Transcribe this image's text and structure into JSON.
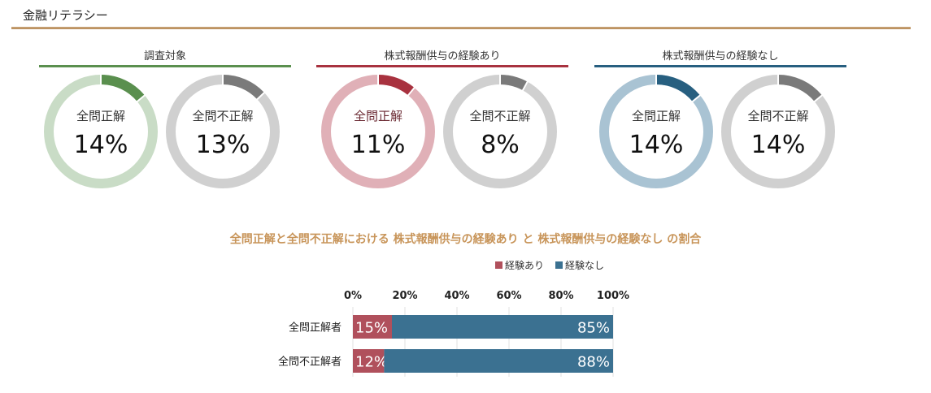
{
  "header": {
    "title": "金融リテラシー"
  },
  "colors": {
    "green": "#5a8f4e",
    "green_light": "#c9dcc6",
    "red": "#a8323f",
    "red_light": "#e0b0b7",
    "blue": "#275f80",
    "blue_light": "#a9c3d3",
    "gray_dark": "#7a7a7a",
    "gray_light": "#d0d0d0",
    "bar_exp": "#b0505c",
    "bar_noexp": "#3b7191",
    "title_accent": "#c8955a"
  },
  "groups": [
    {
      "title": "調査対象",
      "color_key": "green",
      "donuts": [
        {
          "label": "全問正解",
          "value": 14,
          "value_text": "14%",
          "tone": "accent"
        },
        {
          "label": "全問不正解",
          "value": 13,
          "value_text": "13%",
          "tone": "gray"
        }
      ]
    },
    {
      "title": "株式報酬供与の経験あり",
      "color_key": "red",
      "donuts": [
        {
          "label": "全問正解",
          "value": 11,
          "value_text": "11%",
          "tone": "accent"
        },
        {
          "label": "全問不正解",
          "value": 8,
          "value_text": "8%",
          "tone": "gray"
        }
      ]
    },
    {
      "title": "株式報酬供与の経験なし",
      "color_key": "blue",
      "donuts": [
        {
          "label": "全問正解",
          "value": 14,
          "value_text": "14%",
          "tone": "accent"
        },
        {
          "label": "全問不正解",
          "value": 14,
          "value_text": "14%",
          "tone": "gray"
        }
      ]
    }
  ],
  "chart_data": {
    "type": "bar",
    "orientation": "horizontal-stacked-100",
    "title": "全問正解と全問不正解における 株式報酬供与の経験あり と 株式報酬供与の経験なし の割合",
    "categories": [
      "全問正解者",
      "全問不正解者"
    ],
    "series": [
      {
        "name": "経験あり",
        "values": [
          15,
          12
        ],
        "labels": [
          "15%",
          "12%"
        ],
        "color": "#b0505c"
      },
      {
        "name": "経験なし",
        "values": [
          85,
          88
        ],
        "labels": [
          "85%",
          "88%"
        ],
        "color": "#3b7191"
      }
    ],
    "xlim": [
      0,
      100
    ],
    "xticks": [
      "0%",
      "20%",
      "40%",
      "60%",
      "80%",
      "100%"
    ],
    "grid": true,
    "legend": "top-right"
  }
}
